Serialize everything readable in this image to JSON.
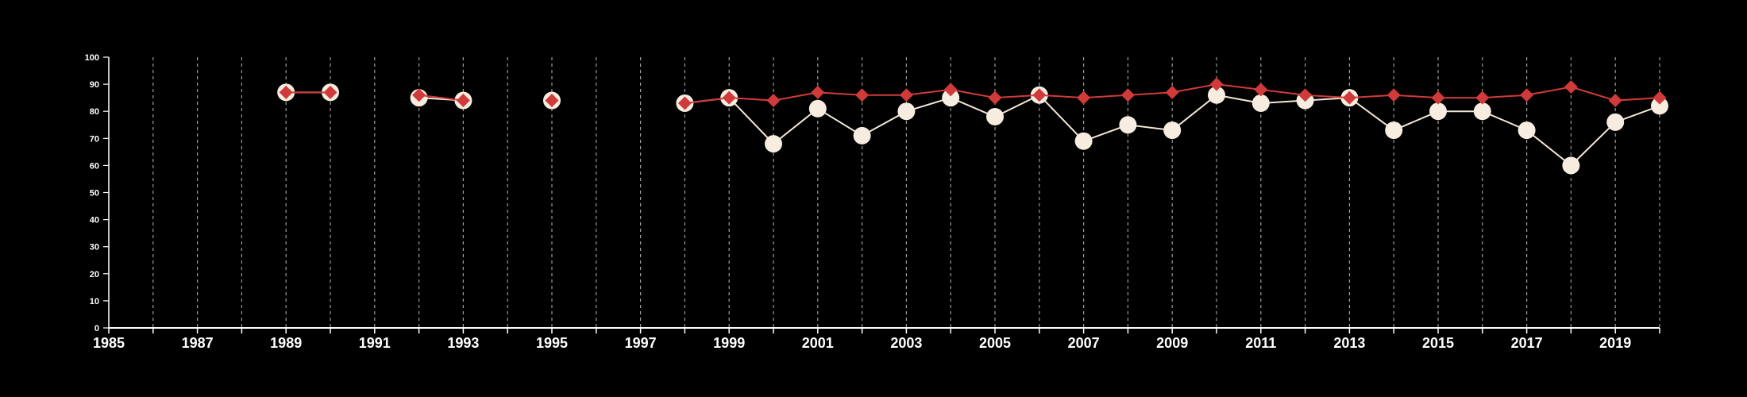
{
  "colors": {
    "background": "#000000",
    "axis": "#ffffff",
    "grid": "#9a9a9a",
    "series_a_line": "#f2e6d6",
    "series_a_marker": "#f6ecdf",
    "series_b": "#d13a3a"
  },
  "chart_data": {
    "type": "line",
    "title": "",
    "xlabel": "",
    "ylabel": "",
    "xlim": [
      1985,
      2020
    ],
    "ylim": [
      0,
      100
    ],
    "x_ticks": [
      1985,
      1987,
      1989,
      1991,
      1993,
      1995,
      1997,
      1999,
      2001,
      2003,
      2005,
      2007,
      2009,
      2011,
      2013,
      2015,
      2017,
      2019
    ],
    "y_ticks": [
      0,
      10,
      20,
      30,
      40,
      50,
      60,
      70,
      80,
      90,
      100
    ],
    "grid": "vertical dashed lines at every year",
    "legend": "none",
    "series": [
      {
        "marker": "circle",
        "color": "#f6ecdf",
        "points": [
          [
            1989,
            87
          ],
          [
            1990,
            87
          ],
          [
            1992,
            85
          ],
          [
            1993,
            84
          ],
          [
            1995,
            84
          ],
          [
            1998,
            83
          ],
          [
            1999,
            85
          ],
          [
            2000,
            68
          ],
          [
            2001,
            81
          ],
          [
            2002,
            71
          ],
          [
            2003,
            80
          ],
          [
            2004,
            85
          ],
          [
            2005,
            78
          ],
          [
            2006,
            86
          ],
          [
            2007,
            69
          ],
          [
            2008,
            75
          ],
          [
            2009,
            73
          ],
          [
            2010,
            86
          ],
          [
            2011,
            83
          ],
          [
            2012,
            84
          ],
          [
            2013,
            85
          ],
          [
            2014,
            73
          ],
          [
            2015,
            80
          ],
          [
            2016,
            80
          ],
          [
            2017,
            73
          ],
          [
            2018,
            60
          ],
          [
            2019,
            76
          ],
          [
            2020,
            82
          ]
        ]
      },
      {
        "marker": "diamond",
        "color": "#d13a3a",
        "points": [
          [
            1989,
            87
          ],
          [
            1990,
            87
          ],
          [
            1992,
            86
          ],
          [
            1993,
            84
          ],
          [
            1995,
            84
          ],
          [
            1998,
            83
          ],
          [
            1999,
            85
          ],
          [
            2000,
            84
          ],
          [
            2001,
            87
          ],
          [
            2002,
            86
          ],
          [
            2003,
            86
          ],
          [
            2004,
            88
          ],
          [
            2005,
            85
          ],
          [
            2006,
            86
          ],
          [
            2007,
            85
          ],
          [
            2008,
            86
          ],
          [
            2009,
            87
          ],
          [
            2010,
            90
          ],
          [
            2011,
            88
          ],
          [
            2012,
            86
          ],
          [
            2013,
            85
          ],
          [
            2014,
            86
          ],
          [
            2015,
            85
          ],
          [
            2016,
            85
          ],
          [
            2017,
            86
          ],
          [
            2018,
            89
          ],
          [
            2019,
            84
          ],
          [
            2020,
            85
          ]
        ]
      }
    ]
  }
}
